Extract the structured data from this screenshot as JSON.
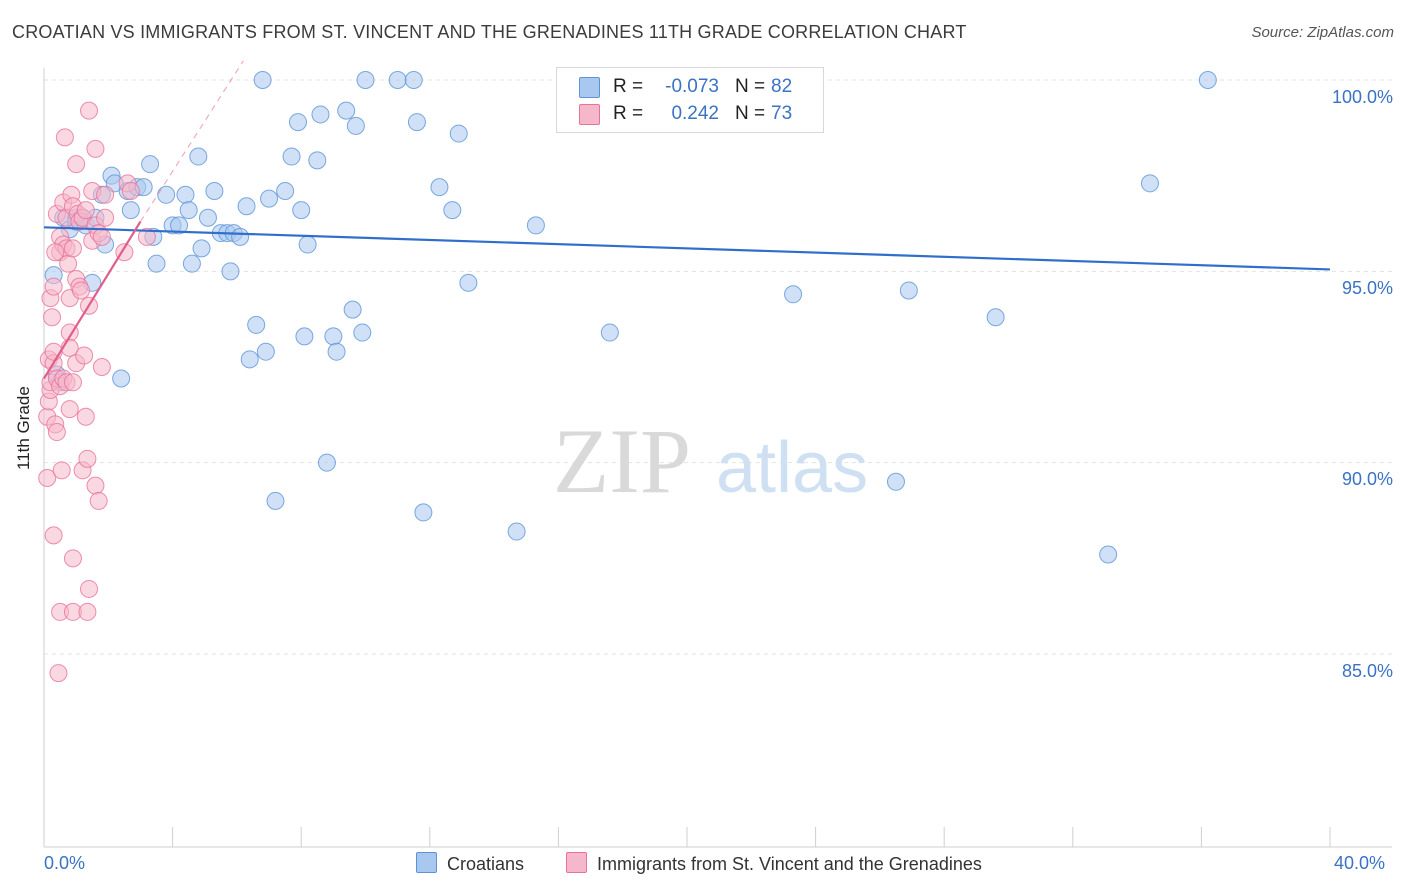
{
  "header": {
    "title": "CROATIAN VS IMMIGRANTS FROM ST. VINCENT AND THE GRENADINES 11TH GRADE CORRELATION CHART",
    "source": "Source: ZipAtlas.com"
  },
  "watermark": {
    "zip": "ZIP",
    "atlas": "atlas"
  },
  "stats": {
    "rows": [
      {
        "r_label": "R =",
        "r_value": "-0.073",
        "n_label": "N =",
        "n_value": "82",
        "color": "#a9c8f0"
      },
      {
        "r_label": "R =",
        "r_value": "0.242",
        "n_label": "N =",
        "n_value": "73",
        "color": "#f5b8cb"
      }
    ]
  },
  "legend": {
    "items": [
      {
        "label": "Croatians",
        "color": "#a9c8f0"
      },
      {
        "label": "Immigrants from St. Vincent and the Grenadines",
        "color": "#f5b8cb"
      }
    ]
  },
  "chart_data": {
    "type": "scatter",
    "title": "CROATIAN VS IMMIGRANTS FROM ST. VINCENT AND THE GRENADINES 11TH GRADE CORRELATION CHART",
    "xlabel": "",
    "ylabel": "11th Grade",
    "x_tick_labels": [
      "0.0%",
      "40.0%"
    ],
    "y_tick_labels": [
      "100.0%",
      "95.0%",
      "90.0%",
      "85.0%"
    ],
    "xlim": [
      0,
      40
    ],
    "ylim": [
      80,
      100.5
    ],
    "grid": true,
    "series": [
      {
        "name": "Croatians",
        "color": "#5b93d6",
        "fill": "#a9c8f0",
        "trend": {
          "x": [
            0,
            40
          ],
          "y": [
            96.15,
            95.05
          ]
        },
        "points": [
          [
            0.3,
            94.9
          ],
          [
            0.4,
            92.3
          ],
          [
            0.6,
            96.4
          ],
          [
            0.8,
            96.1
          ],
          [
            1.0,
            96.4
          ],
          [
            1.0,
            96.3
          ],
          [
            1.2,
            96.4
          ],
          [
            1.3,
            96.2
          ],
          [
            1.5,
            94.7
          ],
          [
            1.6,
            96.4
          ],
          [
            1.8,
            97.0
          ],
          [
            1.9,
            95.7
          ],
          [
            2.1,
            97.5
          ],
          [
            2.2,
            97.3
          ],
          [
            2.4,
            92.2
          ],
          [
            2.6,
            97.1
          ],
          [
            2.7,
            96.6
          ],
          [
            2.9,
            97.2
          ],
          [
            3.1,
            97.2
          ],
          [
            3.3,
            97.8
          ],
          [
            3.4,
            95.9
          ],
          [
            3.5,
            95.2
          ],
          [
            3.8,
            97.0
          ],
          [
            4.0,
            96.2
          ],
          [
            4.2,
            96.2
          ],
          [
            4.4,
            97.0
          ],
          [
            4.5,
            96.6
          ],
          [
            4.6,
            95.2
          ],
          [
            4.8,
            98.0
          ],
          [
            4.9,
            95.6
          ],
          [
            5.1,
            96.4
          ],
          [
            5.3,
            97.1
          ],
          [
            5.5,
            96.0
          ],
          [
            5.7,
            96.0
          ],
          [
            5.8,
            95.0
          ],
          [
            5.9,
            96.0
          ],
          [
            6.1,
            95.9
          ],
          [
            6.3,
            96.7
          ],
          [
            6.4,
            92.7
          ],
          [
            6.6,
            93.6
          ],
          [
            6.8,
            100.0
          ],
          [
            6.9,
            92.9
          ],
          [
            7.0,
            96.9
          ],
          [
            7.2,
            89.0
          ],
          [
            7.5,
            97.1
          ],
          [
            7.7,
            98.0
          ],
          [
            7.9,
            98.9
          ],
          [
            8.0,
            96.6
          ],
          [
            8.1,
            93.3
          ],
          [
            8.2,
            95.7
          ],
          [
            8.5,
            97.9
          ],
          [
            8.6,
            99.1
          ],
          [
            8.8,
            90.0
          ],
          [
            9.0,
            93.3
          ],
          [
            9.1,
            92.9
          ],
          [
            9.4,
            99.2
          ],
          [
            9.6,
            94.0
          ],
          [
            9.7,
            98.8
          ],
          [
            9.9,
            93.4
          ],
          [
            10.0,
            100.0
          ],
          [
            11.0,
            100.0
          ],
          [
            11.5,
            100.0
          ],
          [
            11.6,
            98.9
          ],
          [
            11.8,
            88.7
          ],
          [
            12.3,
            97.2
          ],
          [
            12.7,
            96.6
          ],
          [
            12.9,
            98.6
          ],
          [
            13.2,
            94.7
          ],
          [
            14.7,
            88.2
          ],
          [
            15.3,
            96.2
          ],
          [
            16.8,
            98.9
          ],
          [
            17.6,
            93.4
          ],
          [
            22.6,
            100.0
          ],
          [
            23.2,
            99.0
          ],
          [
            23.3,
            94.4
          ],
          [
            26.5,
            89.5
          ],
          [
            26.9,
            94.5
          ],
          [
            29.6,
            93.8
          ],
          [
            33.1,
            87.6
          ],
          [
            34.4,
            97.3
          ],
          [
            36.2,
            100.0
          ],
          [
            0.5,
            92.1
          ]
        ]
      },
      {
        "name": "Immigrants from St. Vincent and the Grenadines",
        "color": "#e8729a",
        "fill": "#f5b8cb",
        "trend": {
          "x": [
            0,
            3.0
          ],
          "y": [
            92.2,
            96.3
          ]
        },
        "trend_dashed": {
          "x": [
            3.0,
            6.2
          ],
          "y": [
            96.3,
            100.5
          ]
        },
        "points": [
          [
            0.1,
            89.6
          ],
          [
            0.1,
            91.2
          ],
          [
            0.15,
            92.7
          ],
          [
            0.15,
            91.6
          ],
          [
            0.2,
            94.3
          ],
          [
            0.2,
            91.9
          ],
          [
            0.2,
            92.1
          ],
          [
            0.25,
            93.8
          ],
          [
            0.3,
            92.6
          ],
          [
            0.3,
            88.1
          ],
          [
            0.3,
            92.9
          ],
          [
            0.3,
            94.6
          ],
          [
            0.35,
            91.0
          ],
          [
            0.4,
            96.5
          ],
          [
            0.4,
            92.2
          ],
          [
            0.4,
            90.8
          ],
          [
            0.45,
            84.5
          ],
          [
            0.5,
            95.5
          ],
          [
            0.5,
            95.9
          ],
          [
            0.5,
            92.0
          ],
          [
            0.5,
            86.1
          ],
          [
            0.55,
            89.8
          ],
          [
            0.6,
            96.8
          ],
          [
            0.6,
            95.7
          ],
          [
            0.6,
            92.2
          ],
          [
            0.65,
            98.5
          ],
          [
            0.7,
            96.4
          ],
          [
            0.7,
            95.6
          ],
          [
            0.7,
            92.1
          ],
          [
            0.75,
            95.2
          ],
          [
            0.8,
            94.3
          ],
          [
            0.8,
            93.4
          ],
          [
            0.8,
            93.0
          ],
          [
            0.8,
            91.4
          ],
          [
            0.85,
            97.0
          ],
          [
            0.9,
            96.7
          ],
          [
            0.9,
            95.6
          ],
          [
            0.9,
            92.1
          ],
          [
            0.9,
            87.5
          ],
          [
            0.9,
            86.1
          ],
          [
            1.0,
            97.8
          ],
          [
            1.0,
            94.8
          ],
          [
            1.0,
            92.6
          ],
          [
            1.05,
            96.5
          ],
          [
            1.1,
            96.3
          ],
          [
            1.1,
            94.6
          ],
          [
            1.15,
            94.5
          ],
          [
            1.2,
            96.4
          ],
          [
            1.2,
            89.8
          ],
          [
            1.25,
            92.8
          ],
          [
            1.3,
            96.6
          ],
          [
            1.3,
            91.2
          ],
          [
            1.35,
            86.1
          ],
          [
            1.35,
            90.1
          ],
          [
            1.4,
            99.2
          ],
          [
            1.4,
            94.1
          ],
          [
            1.4,
            86.7
          ],
          [
            1.5,
            97.1
          ],
          [
            1.5,
            95.8
          ],
          [
            1.6,
            98.2
          ],
          [
            1.6,
            96.2
          ],
          [
            1.6,
            89.4
          ],
          [
            1.7,
            89.0
          ],
          [
            1.7,
            96.0
          ],
          [
            1.8,
            92.5
          ],
          [
            1.8,
            95.9
          ],
          [
            1.9,
            96.4
          ],
          [
            1.9,
            97.0
          ],
          [
            2.5,
            95.5
          ],
          [
            2.6,
            97.3
          ],
          [
            2.7,
            97.1
          ],
          [
            3.2,
            95.9
          ],
          [
            0.35,
            95.5
          ]
        ]
      }
    ]
  }
}
